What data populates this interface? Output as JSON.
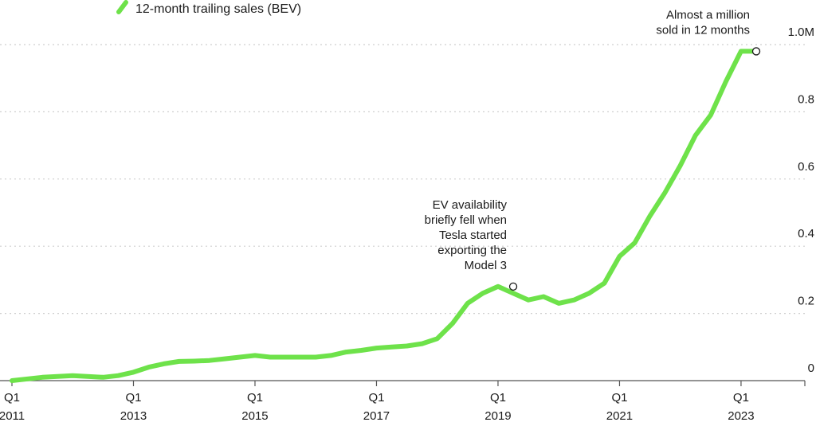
{
  "chart_data": {
    "type": "line",
    "legend": {
      "label": "12-month trailing sales (BEV)",
      "position": "top-left",
      "color": "#6ee24a"
    },
    "series": [
      {
        "name": "12-month trailing sales (BEV)",
        "color": "#6ee24a",
        "x": [
          2011.0,
          2011.5,
          2012.0,
          2012.5,
          2012.75,
          2013.0,
          2013.25,
          2013.5,
          2013.75,
          2014.0,
          2014.25,
          2014.5,
          2014.75,
          2015.0,
          2015.25,
          2015.5,
          2015.75,
          2016.0,
          2016.25,
          2016.5,
          2016.75,
          2017.0,
          2017.25,
          2017.5,
          2017.75,
          2018.0,
          2018.25,
          2018.5,
          2018.75,
          2019.0,
          2019.25,
          2019.5,
          2019.75,
          2020.0,
          2020.25,
          2020.5,
          2020.75,
          2021.0,
          2021.25,
          2021.5,
          2021.75,
          2022.0,
          2022.25,
          2022.5,
          2022.75,
          2023.0,
          2023.25
        ],
        "y": [
          0.0,
          0.01,
          0.015,
          0.01,
          0.015,
          0.025,
          0.04,
          0.05,
          0.057,
          0.058,
          0.06,
          0.065,
          0.07,
          0.075,
          0.07,
          0.07,
          0.07,
          0.07,
          0.075,
          0.085,
          0.09,
          0.097,
          0.1,
          0.103,
          0.11,
          0.125,
          0.17,
          0.23,
          0.26,
          0.28,
          0.26,
          0.24,
          0.25,
          0.23,
          0.24,
          0.26,
          0.29,
          0.37,
          0.41,
          0.49,
          0.56,
          0.64,
          0.73,
          0.79,
          0.89,
          0.98,
          0.98
        ]
      }
    ],
    "x_ticks": [
      {
        "x": 2011,
        "q": "Q1",
        "year": "2011"
      },
      {
        "x": 2013,
        "q": "Q1",
        "year": "2013"
      },
      {
        "x": 2015,
        "q": "Q1",
        "year": "2015"
      },
      {
        "x": 2017,
        "q": "Q1",
        "year": "2017"
      },
      {
        "x": 2019,
        "q": "Q1",
        "year": "2019"
      },
      {
        "x": 2021,
        "q": "Q1",
        "year": "2021"
      },
      {
        "x": 2023,
        "q": "Q1",
        "year": "2023"
      }
    ],
    "y_ticks": [
      {
        "value": 0,
        "label": "0"
      },
      {
        "value": 0.2,
        "label": "0.2"
      },
      {
        "value": 0.4,
        "label": "0.4"
      },
      {
        "value": 0.6,
        "label": "0.6"
      },
      {
        "value": 0.8,
        "label": "0.8"
      },
      {
        "value": 1.0,
        "label": "1.0M"
      }
    ],
    "xlim": [
      2011,
      2024.05
    ],
    "ylim": [
      0,
      1.0
    ],
    "grid": "horizontal dotted",
    "annotations": [
      {
        "x": 2019.25,
        "y": 0.28,
        "lines": [
          "EV availability",
          "briefly fell when",
          "Tesla started",
          "exporting the",
          "Model 3"
        ]
      },
      {
        "x": 2023.25,
        "y": 0.98,
        "lines": [
          "Almost a million",
          "sold in 12 months"
        ]
      }
    ]
  }
}
